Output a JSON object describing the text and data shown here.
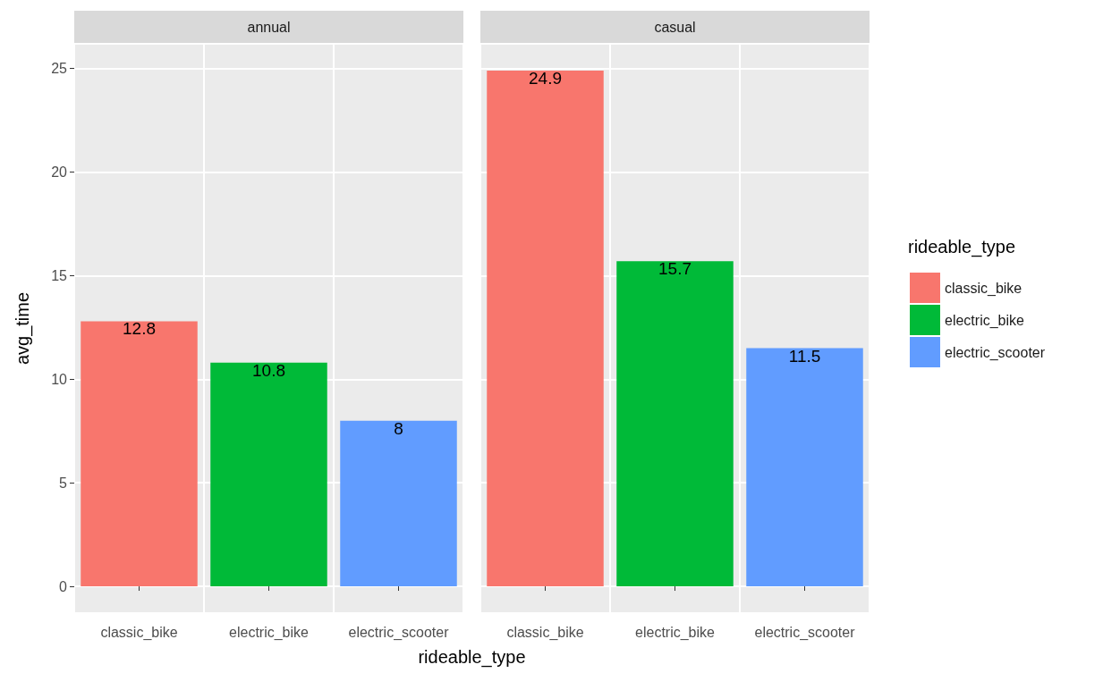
{
  "chart_data": [
    {
      "type": "bar",
      "title": "annual",
      "xlabel": "rideable_type",
      "ylabel": "avg_time",
      "categories": [
        "classic_bike",
        "electric_bike",
        "electric_scooter"
      ],
      "series": [
        {
          "color": "#f8766d",
          "values": [
            12.8,
            null,
            null
          ]
        },
        {
          "color": "#00ba38",
          "values": [
            null,
            10.8,
            null
          ]
        },
        {
          "color": "#619cff",
          "values": [
            null,
            null,
            8
          ]
        }
      ],
      "ylim": [
        -1.25,
        26.15
      ],
      "yticks": [
        0,
        5,
        10,
        15,
        20,
        25
      ],
      "grid": true,
      "data_labels": true,
      "legend": false
    },
    {
      "type": "bar",
      "title": "casual",
      "categories": [
        "classic_bike",
        "electric_bike",
        "electric_scooter"
      ],
      "series": [
        {
          "name": "classic_bike",
          "color": "#f8766d",
          "values": [
            24.9,
            null,
            null
          ]
        },
        {
          "name": "electric_bike",
          "color": "#00ba38",
          "values": [
            null,
            15.7,
            null
          ]
        },
        {
          "name": "electric_scooter",
          "color": "#619cff",
          "values": [
            null,
            null,
            11.5
          ]
        }
      ],
      "ylim": [
        -1.25,
        26.15
      ],
      "yticks": [
        0,
        5,
        10,
        15,
        20,
        25
      ],
      "grid": true,
      "data_labels": true,
      "legend": "right",
      "legend_title": "rideable_type",
      "tick_labels": "x"
    }
  ]
}
